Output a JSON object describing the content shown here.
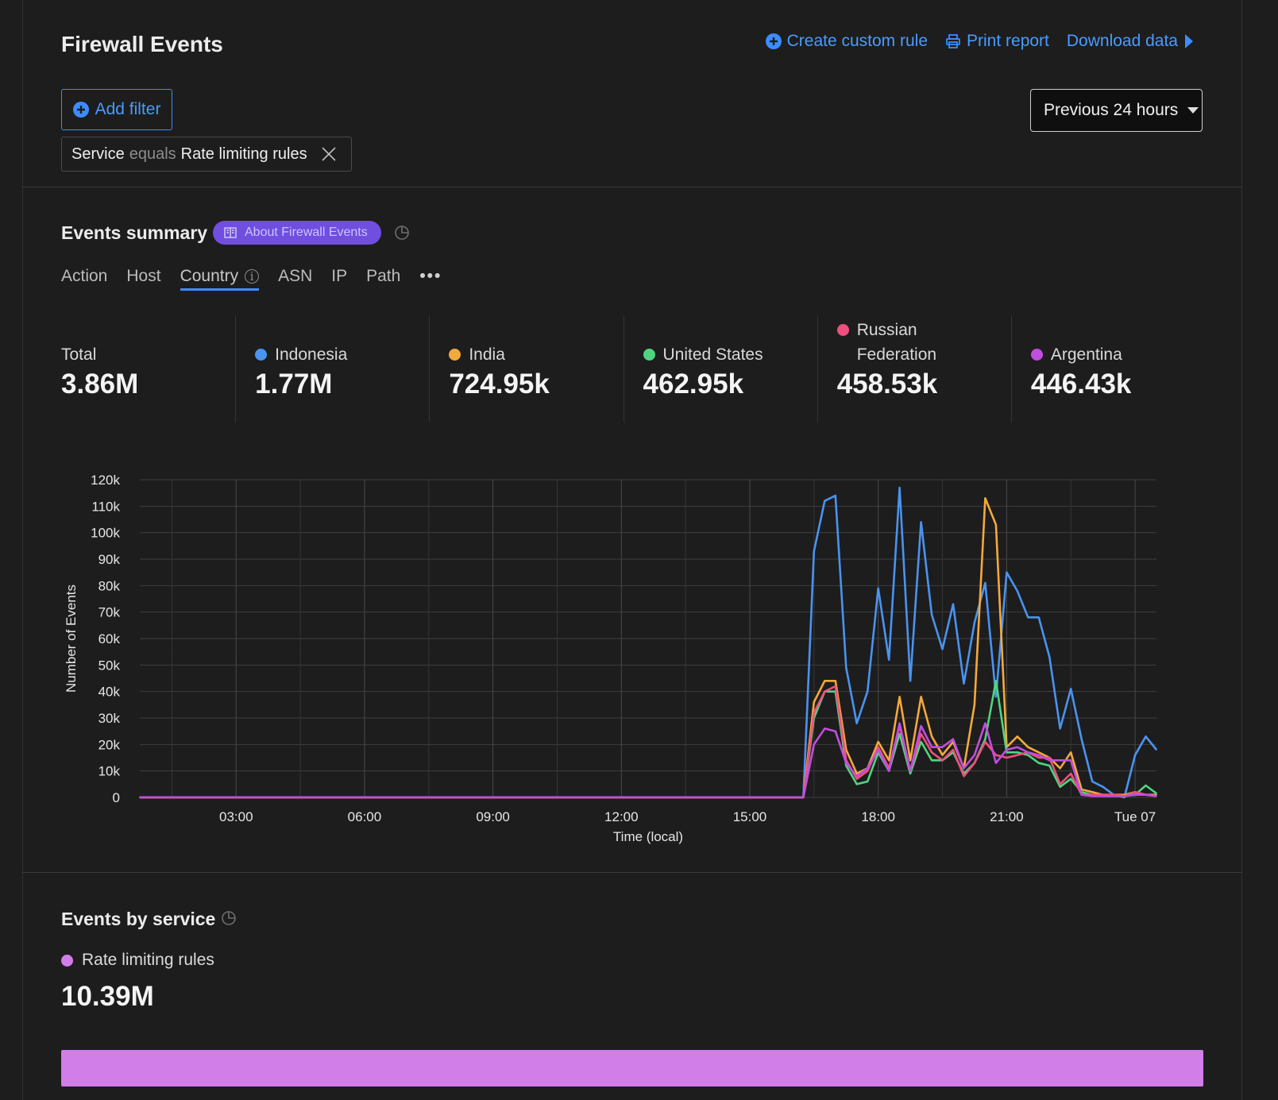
{
  "header": {
    "title": "Firewall Events",
    "create_rule": "Create custom rule",
    "print_report": "Print report",
    "download_data": "Download data"
  },
  "filters": {
    "add_filter": "Add filter",
    "time_range": "Previous 24 hours",
    "chip": {
      "field": "Service",
      "operator": "equals",
      "value": "Rate limiting rules"
    }
  },
  "summary": {
    "title": "Events summary",
    "about_label": "About Firewall Events",
    "tabs": [
      "Action",
      "Host",
      "Country",
      "ASN",
      "IP",
      "Path"
    ],
    "active_tab": "Country",
    "more_label": "•••",
    "stats": [
      {
        "label": "Total",
        "value": "3.86M",
        "color": ""
      },
      {
        "label": "Indonesia",
        "value": "1.77M",
        "color": "#4a93f0"
      },
      {
        "label": "India",
        "value": "724.95k",
        "color": "#f5a93b"
      },
      {
        "label": "United States",
        "value": "462.95k",
        "color": "#4fd57f"
      },
      {
        "label": "Russian Federation",
        "value": "458.53k",
        "color": "#ef4f7e"
      },
      {
        "label": "Argentina",
        "value": "446.43k",
        "color": "#c24de0"
      }
    ]
  },
  "chart_data": {
    "type": "line",
    "ylabel": "Number of Events",
    "xlabel": "Time (local)",
    "ylim": [
      0,
      120000
    ],
    "yticks": [
      0,
      10000,
      20000,
      30000,
      40000,
      50000,
      60000,
      70000,
      80000,
      90000,
      100000,
      110000,
      120000
    ],
    "ytick_labels": [
      "0",
      "10k",
      "20k",
      "30k",
      "40k",
      "50k",
      "60k",
      "70k",
      "80k",
      "90k",
      "100k",
      "110k",
      "120k"
    ],
    "xlim": [
      0.75,
      24.5
    ],
    "xtick_labels": [
      "03:00",
      "06:00",
      "09:00",
      "12:00",
      "15:00",
      "18:00",
      "21:00",
      "Tue 07"
    ],
    "xticks": [
      3,
      6,
      9,
      12,
      15,
      18,
      21,
      24
    ],
    "x": [
      0.75,
      1.0,
      16.25,
      16.5,
      16.75,
      17.0,
      17.25,
      17.5,
      17.75,
      18.0,
      18.25,
      18.5,
      18.75,
      19.0,
      19.25,
      19.5,
      19.75,
      20.0,
      20.25,
      20.5,
      20.75,
      21.0,
      21.25,
      21.5,
      21.75,
      22.0,
      22.25,
      22.5,
      22.75,
      23.0,
      23.25,
      23.5,
      23.75,
      24.0,
      24.25,
      24.5
    ],
    "series": [
      {
        "name": "Indonesia",
        "color": "#4a93f0",
        "values": [
          0,
          0,
          0,
          93000,
          112000,
          114000,
          49000,
          28000,
          40000,
          79000,
          52000,
          117000,
          44000,
          104000,
          69000,
          56000,
          73000,
          43000,
          66000,
          81000,
          38000,
          85000,
          78000,
          68000,
          68000,
          53000,
          26000,
          41000,
          22000,
          6000,
          4000,
          1000,
          0,
          16000,
          23000,
          18000
        ]
      },
      {
        "name": "India",
        "color": "#f5a93b",
        "values": [
          0,
          0,
          0,
          36000,
          44000,
          44000,
          18000,
          9000,
          11000,
          21000,
          14000,
          38000,
          14000,
          38000,
          23000,
          16000,
          21000,
          11000,
          35000,
          113000,
          103000,
          19000,
          23000,
          19000,
          17000,
          15000,
          11000,
          17000,
          3000,
          2000,
          1000,
          1000,
          1000,
          2000,
          1000,
          1000
        ]
      },
      {
        "name": "United States",
        "color": "#4fd57f",
        "values": [
          0,
          0,
          0,
          30000,
          40000,
          40000,
          12000,
          5000,
          6000,
          17000,
          10000,
          24000,
          9000,
          21000,
          14000,
          14000,
          17000,
          9000,
          13000,
          22000,
          44000,
          17000,
          17000,
          16000,
          13000,
          12000,
          4000,
          7000,
          2000,
          1000,
          500,
          500,
          500,
          1000,
          4500,
          1500
        ]
      },
      {
        "name": "Russian Federation",
        "color": "#ef4f7e",
        "values": [
          0,
          0,
          0,
          32000,
          40000,
          42000,
          14000,
          7000,
          10000,
          19000,
          11000,
          27000,
          10000,
          24000,
          17000,
          14000,
          18000,
          8000,
          13000,
          21000,
          16000,
          15000,
          16000,
          17000,
          15000,
          15000,
          5000,
          9000,
          1000,
          1000,
          1000,
          1000,
          500,
          2000,
          1000,
          500
        ]
      },
      {
        "name": "Argentina",
        "color": "#c24de0",
        "values": [
          0,
          0,
          0,
          20000,
          26000,
          25000,
          13000,
          8000,
          11000,
          18000,
          10000,
          28000,
          10000,
          27000,
          19000,
          19000,
          22000,
          11000,
          16000,
          28000,
          13000,
          18000,
          19000,
          17000,
          16000,
          14000,
          14000,
          14000,
          1000,
          500,
          500,
          500,
          500,
          1000,
          1000,
          500
        ]
      }
    ]
  },
  "by_service": {
    "title": "Events by service",
    "legend_label": "Rate limiting rules",
    "legend_color": "#d27ee9",
    "value": "10.39M",
    "share": 1.0
  }
}
